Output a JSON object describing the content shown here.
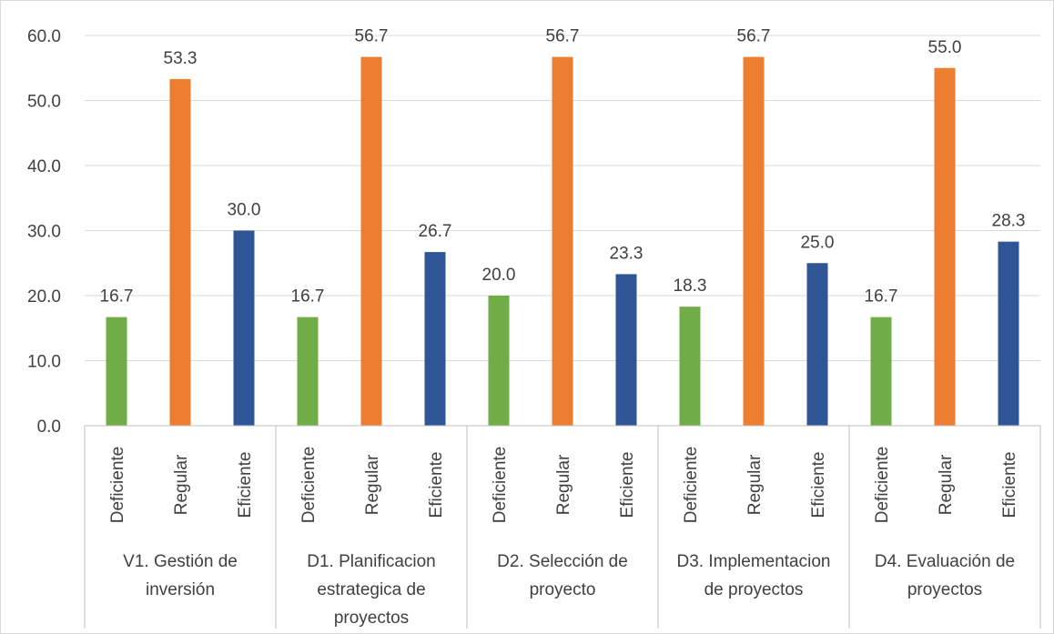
{
  "chart_data": {
    "type": "bar",
    "title": "",
    "xlabel": "",
    "ylabel": "",
    "ylim": [
      0,
      60
    ],
    "yticks": [
      "0.0",
      "10.0",
      "20.0",
      "30.0",
      "40.0",
      "50.0",
      "60.0"
    ],
    "grid": true,
    "legend": "none",
    "groups": [
      {
        "label_lines": [
          "V1. Gestión de",
          "inversión"
        ],
        "bars": [
          {
            "category": "Deficiente",
            "value": 16.7,
            "label": "16.7",
            "color": "#70ad47"
          },
          {
            "category": "Regular",
            "value": 53.3,
            "label": "53.3",
            "color": "#ed7d31"
          },
          {
            "category": "Eficiente",
            "value": 30.0,
            "label": "30.0",
            "color": "#2f5597"
          }
        ]
      },
      {
        "label_lines": [
          "D1. Planificacion",
          "estrategica de",
          "proyectos"
        ],
        "bars": [
          {
            "category": "Deficiente",
            "value": 16.7,
            "label": "16.7",
            "color": "#70ad47"
          },
          {
            "category": "Regular",
            "value": 56.7,
            "label": "56.7",
            "color": "#ed7d31"
          },
          {
            "category": "Eficiente",
            "value": 26.7,
            "label": "26.7",
            "color": "#2f5597"
          }
        ]
      },
      {
        "label_lines": [
          "D2. Selección de",
          "proyecto"
        ],
        "bars": [
          {
            "category": "Deficiente",
            "value": 20.0,
            "label": "20.0",
            "color": "#70ad47"
          },
          {
            "category": "Regular",
            "value": 56.7,
            "label": "56.7",
            "color": "#ed7d31"
          },
          {
            "category": "Eficiente",
            "value": 23.3,
            "label": "23.3",
            "color": "#2f5597"
          }
        ]
      },
      {
        "label_lines": [
          "D3. Implementacion",
          "de proyectos"
        ],
        "bars": [
          {
            "category": "Deficiente",
            "value": 18.3,
            "label": "18.3",
            "color": "#70ad47"
          },
          {
            "category": "Regular",
            "value": 56.7,
            "label": "56.7",
            "color": "#ed7d31"
          },
          {
            "category": "Eficiente",
            "value": 25.0,
            "label": "25.0",
            "color": "#2f5597"
          }
        ]
      },
      {
        "label_lines": [
          "D4. Evaluación de",
          "proyectos"
        ],
        "bars": [
          {
            "category": "Deficiente",
            "value": 16.7,
            "label": "16.7",
            "color": "#70ad47"
          },
          {
            "category": "Regular",
            "value": 55.0,
            "label": "55.0",
            "color": "#ed7d31"
          },
          {
            "category": "Eficiente",
            "value": 28.3,
            "label": "28.3",
            "color": "#2f5597"
          }
        ]
      }
    ]
  },
  "colors": {
    "gridline": "#d9d9d9",
    "axis": "#bfbfbf",
    "text": "#404040"
  }
}
